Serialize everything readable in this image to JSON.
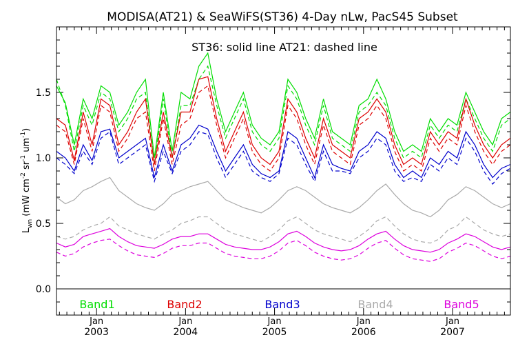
{
  "chart_data": {
    "type": "line",
    "title": "MODISA(AT21) & SeaWiFS(ST36) 4-Day nLw, PacS45 Subset",
    "subtitle": "ST36: solid line   AT21: dashed line",
    "ylabel": "L_wn (mW cm^-2 sr^-1 um^-1)",
    "ylabel_parts": {
      "main": "L",
      "sub": "wn",
      "units": "(mW cm",
      "e1": "-2",
      "s2": " sr",
      "e2": "-1",
      "s3": " um",
      "e3": "-1",
      "close": ")"
    },
    "ylim": [
      -0.2,
      2.0
    ],
    "yticks": [
      "0.0",
      "0.5",
      "1.0",
      "1.5"
    ],
    "xlim": [
      2002.55,
      2007.65
    ],
    "x_month_label": "Jan",
    "x_year_labels": [
      "2003",
      "2004",
      "2005",
      "2006",
      "2007"
    ],
    "grid": false,
    "legend_position": "bottom",
    "x": [
      2002.55,
      2002.65,
      2002.75,
      2002.85,
      2002.95,
      2003.05,
      2003.15,
      2003.25,
      2003.35,
      2003.45,
      2003.55,
      2003.65,
      2003.75,
      2003.85,
      2003.95,
      2004.05,
      2004.15,
      2004.25,
      2004.35,
      2004.45,
      2004.55,
      2004.65,
      2004.75,
      2004.85,
      2004.95,
      2005.05,
      2005.15,
      2005.25,
      2005.35,
      2005.45,
      2005.55,
      2005.65,
      2005.75,
      2005.85,
      2005.95,
      2006.05,
      2006.15,
      2006.25,
      2006.35,
      2006.45,
      2006.55,
      2006.65,
      2006.75,
      2006.85,
      2006.95,
      2007.05,
      2007.15,
      2007.25,
      2007.35,
      2007.45,
      2007.55,
      2007.65
    ],
    "series": [
      {
        "name": "Band1",
        "color": "#00dd00",
        "style": "solid",
        "values": [
          1.55,
          1.42,
          1.1,
          1.45,
          1.3,
          1.55,
          1.5,
          1.25,
          1.35,
          1.5,
          1.6,
          1.0,
          1.5,
          1.05,
          1.5,
          1.45,
          1.7,
          1.8,
          1.45,
          1.2,
          1.35,
          1.5,
          1.25,
          1.15,
          1.1,
          1.2,
          1.6,
          1.5,
          1.3,
          1.15,
          1.45,
          1.2,
          1.15,
          1.1,
          1.4,
          1.45,
          1.6,
          1.45,
          1.2,
          1.05,
          1.1,
          1.05,
          1.3,
          1.2,
          1.3,
          1.25,
          1.5,
          1.35,
          1.2,
          1.1,
          1.3,
          1.35
        ]
      },
      {
        "name": "AT21 Band1",
        "color": "#00dd00",
        "style": "dashed",
        "values": [
          1.6,
          1.4,
          1.05,
          1.4,
          1.25,
          1.5,
          1.45,
          1.2,
          1.3,
          1.45,
          1.5,
          0.95,
          1.45,
          1.0,
          1.4,
          1.4,
          1.6,
          1.7,
          1.4,
          1.15,
          1.3,
          1.45,
          1.2,
          1.1,
          1.05,
          1.15,
          1.55,
          1.45,
          1.25,
          1.1,
          1.4,
          1.15,
          1.1,
          1.05,
          1.35,
          1.4,
          1.5,
          1.4,
          1.15,
          1.0,
          1.05,
          1.0,
          1.25,
          1.15,
          1.25,
          1.2,
          1.45,
          1.3,
          1.15,
          1.05,
          1.25,
          1.3
        ]
      },
      {
        "name": "Band2",
        "color": "#dd0000",
        "style": "solid",
        "values": [
          1.3,
          1.25,
          0.98,
          1.35,
          1.1,
          1.45,
          1.4,
          1.1,
          1.2,
          1.35,
          1.45,
          0.95,
          1.35,
          1.0,
          1.35,
          1.35,
          1.6,
          1.62,
          1.3,
          1.05,
          1.2,
          1.35,
          1.1,
          1.0,
          0.95,
          1.05,
          1.45,
          1.35,
          1.15,
          1.0,
          1.3,
          1.1,
          1.05,
          1.0,
          1.3,
          1.35,
          1.45,
          1.35,
          1.1,
          0.95,
          1.0,
          0.95,
          1.2,
          1.1,
          1.2,
          1.15,
          1.45,
          1.25,
          1.1,
          1.0,
          1.1,
          1.15
        ]
      },
      {
        "name": "AT21 Band2",
        "color": "#dd0000",
        "style": "dashed",
        "values": [
          1.25,
          1.2,
          0.95,
          1.3,
          1.05,
          1.4,
          1.35,
          1.05,
          1.15,
          1.3,
          1.35,
          0.9,
          1.3,
          0.95,
          1.25,
          1.3,
          1.5,
          1.55,
          1.25,
          1.0,
          1.15,
          1.3,
          1.05,
          0.95,
          0.9,
          1.0,
          1.4,
          1.3,
          1.1,
          0.95,
          1.25,
          1.05,
          1.0,
          0.95,
          1.25,
          1.3,
          1.4,
          1.3,
          1.05,
          0.9,
          0.95,
          0.9,
          1.15,
          1.05,
          1.15,
          1.1,
          1.4,
          1.2,
          1.05,
          0.95,
          1.05,
          1.1
        ]
      },
      {
        "name": "Band3",
        "color": "#0000cc",
        "style": "solid",
        "values": [
          1.05,
          1.0,
          0.9,
          1.1,
          0.98,
          1.2,
          1.22,
          1.0,
          1.05,
          1.1,
          1.15,
          0.85,
          1.1,
          0.9,
          1.1,
          1.15,
          1.25,
          1.22,
          1.05,
          0.9,
          1.0,
          1.1,
          0.95,
          0.88,
          0.85,
          0.9,
          1.2,
          1.15,
          1.0,
          0.85,
          1.1,
          0.95,
          0.92,
          0.9,
          1.05,
          1.1,
          1.2,
          1.15,
          0.95,
          0.85,
          0.9,
          0.85,
          1.0,
          0.95,
          1.05,
          1.0,
          1.2,
          1.1,
          0.95,
          0.85,
          0.92,
          0.95
        ]
      },
      {
        "name": "AT21 Band3",
        "color": "#0000cc",
        "style": "dashed",
        "values": [
          1.0,
          0.95,
          0.88,
          1.05,
          0.95,
          1.15,
          1.2,
          0.95,
          1.0,
          1.05,
          1.1,
          0.82,
          1.05,
          0.88,
          1.05,
          1.1,
          1.2,
          1.18,
          1.0,
          0.85,
          0.95,
          1.05,
          0.9,
          0.85,
          0.82,
          0.88,
          1.15,
          1.1,
          0.95,
          0.82,
          1.05,
          0.9,
          0.9,
          0.88,
          1.0,
          1.05,
          1.15,
          1.1,
          0.9,
          0.82,
          0.85,
          0.82,
          0.95,
          0.9,
          1.0,
          0.95,
          1.15,
          1.05,
          0.9,
          0.8,
          0.88,
          0.92
        ]
      },
      {
        "name": "Band4",
        "color": "#aaaaaa",
        "style": "solid",
        "values": [
          0.7,
          0.65,
          0.68,
          0.75,
          0.78,
          0.82,
          0.85,
          0.75,
          0.7,
          0.65,
          0.62,
          0.6,
          0.65,
          0.72,
          0.75,
          0.78,
          0.8,
          0.82,
          0.75,
          0.68,
          0.65,
          0.62,
          0.6,
          0.58,
          0.62,
          0.68,
          0.75,
          0.78,
          0.75,
          0.7,
          0.65,
          0.62,
          0.6,
          0.58,
          0.62,
          0.68,
          0.75,
          0.8,
          0.72,
          0.65,
          0.6,
          0.58,
          0.55,
          0.6,
          0.68,
          0.72,
          0.78,
          0.75,
          0.7,
          0.65,
          0.62,
          0.65
        ]
      },
      {
        "name": "AT21 Band4",
        "color": "#aaaaaa",
        "style": "dashed",
        "values": [
          0.4,
          0.38,
          0.4,
          0.45,
          0.48,
          0.5,
          0.55,
          0.48,
          0.45,
          0.42,
          0.4,
          0.38,
          0.42,
          0.45,
          0.5,
          0.52,
          0.55,
          0.55,
          0.5,
          0.45,
          0.42,
          0.4,
          0.38,
          0.36,
          0.4,
          0.45,
          0.52,
          0.55,
          0.5,
          0.45,
          0.42,
          0.4,
          0.38,
          0.36,
          0.4,
          0.45,
          0.52,
          0.55,
          0.48,
          0.42,
          0.38,
          0.36,
          0.35,
          0.38,
          0.45,
          0.48,
          0.55,
          0.5,
          0.45,
          0.42,
          0.4,
          0.42
        ]
      },
      {
        "name": "Band5",
        "color": "#dd00dd",
        "style": "solid",
        "values": [
          0.35,
          0.32,
          0.34,
          0.4,
          0.42,
          0.44,
          0.46,
          0.4,
          0.36,
          0.33,
          0.32,
          0.31,
          0.34,
          0.38,
          0.4,
          0.4,
          0.42,
          0.42,
          0.38,
          0.34,
          0.32,
          0.31,
          0.3,
          0.3,
          0.32,
          0.36,
          0.42,
          0.44,
          0.4,
          0.35,
          0.32,
          0.3,
          0.29,
          0.3,
          0.33,
          0.38,
          0.42,
          0.44,
          0.38,
          0.33,
          0.3,
          0.29,
          0.28,
          0.3,
          0.35,
          0.38,
          0.42,
          0.4,
          0.36,
          0.32,
          0.3,
          0.32
        ]
      },
      {
        "name": "AT21 Band5",
        "color": "#dd00dd",
        "style": "dashed",
        "values": [
          0.28,
          0.25,
          0.27,
          0.32,
          0.35,
          0.37,
          0.38,
          0.33,
          0.29,
          0.26,
          0.25,
          0.24,
          0.27,
          0.31,
          0.33,
          0.33,
          0.35,
          0.35,
          0.31,
          0.27,
          0.25,
          0.24,
          0.23,
          0.23,
          0.25,
          0.29,
          0.35,
          0.37,
          0.33,
          0.28,
          0.25,
          0.23,
          0.22,
          0.23,
          0.26,
          0.31,
          0.35,
          0.37,
          0.31,
          0.26,
          0.23,
          0.22,
          0.21,
          0.23,
          0.28,
          0.31,
          0.35,
          0.33,
          0.29,
          0.25,
          0.23,
          0.25
        ]
      }
    ]
  }
}
